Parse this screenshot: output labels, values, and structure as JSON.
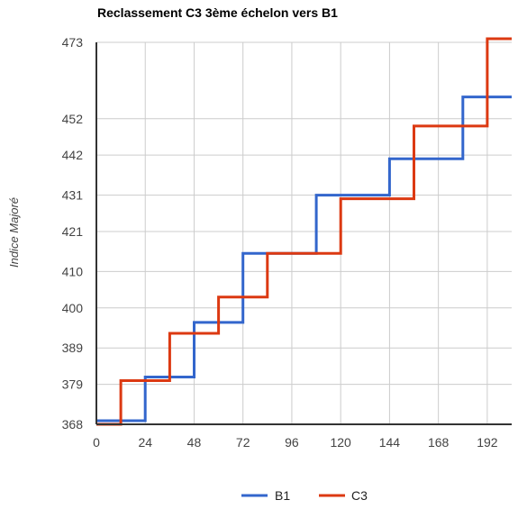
{
  "chart_data": {
    "type": "line",
    "step": true,
    "title": "Reclassement C3 3ème échelon vers B1",
    "xlabel": "",
    "ylabel": "Indice Majoré",
    "x_ticks": [
      0,
      24,
      48,
      72,
      96,
      120,
      144,
      168,
      192
    ],
    "y_ticks": [
      368,
      379,
      389,
      400,
      410,
      421,
      431,
      442,
      452,
      473
    ],
    "xlim": [
      0,
      204
    ],
    "ylim": [
      368,
      473
    ],
    "grid": true,
    "legend_position": "bottom",
    "series": [
      {
        "name": "B1",
        "color": "#3366cc",
        "points": [
          [
            0,
            369
          ],
          [
            24,
            369
          ],
          [
            24,
            381
          ],
          [
            48,
            381
          ],
          [
            48,
            396
          ],
          [
            72,
            396
          ],
          [
            72,
            415
          ],
          [
            108,
            415
          ],
          [
            108,
            431
          ],
          [
            144,
            431
          ],
          [
            144,
            441
          ],
          [
            180,
            441
          ],
          [
            180,
            458
          ],
          [
            204,
            458
          ]
        ]
      },
      {
        "name": "C3",
        "color": "#dc3912",
        "points": [
          [
            0,
            368
          ],
          [
            12,
            368
          ],
          [
            12,
            380
          ],
          [
            36,
            380
          ],
          [
            36,
            393
          ],
          [
            60,
            393
          ],
          [
            60,
            403
          ],
          [
            84,
            403
          ],
          [
            84,
            415
          ],
          [
            120,
            415
          ],
          [
            120,
            430
          ],
          [
            156,
            430
          ],
          [
            156,
            450
          ],
          [
            192,
            450
          ],
          [
            192,
            474
          ],
          [
            204,
            474
          ]
        ]
      }
    ]
  }
}
